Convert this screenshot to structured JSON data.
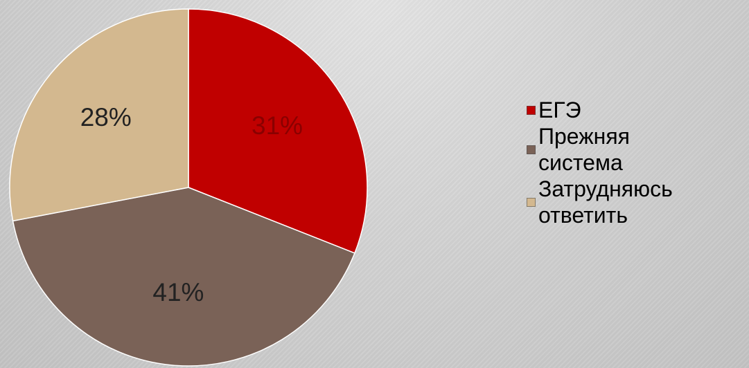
{
  "chart_data": {
    "type": "pie",
    "title": "",
    "categories": [
      "ЕГЭ",
      "Прежняя система",
      "Затрудняюсь ответить"
    ],
    "values": [
      31,
      41,
      28
    ],
    "labels": [
      "31%",
      "41%",
      "28%"
    ],
    "unit": "%",
    "start_angle": "12 o'clock",
    "direction": "clockwise",
    "colors": [
      "#c00000",
      "#7a6257",
      "#d3b88f"
    ],
    "label_colors": [
      "#8a0000",
      "#222222",
      "#222222"
    ],
    "legend_position": "right"
  },
  "legend": {
    "items": [
      {
        "label_lines": [
          "ЕГЭ"
        ],
        "color": "#c00000"
      },
      {
        "label_lines": [
          "Прежняя",
          "система"
        ],
        "color": "#7a6257"
      },
      {
        "label_lines": [
          "Затрудняюсь",
          "ответить"
        ],
        "color": "#d3b88f"
      }
    ]
  }
}
